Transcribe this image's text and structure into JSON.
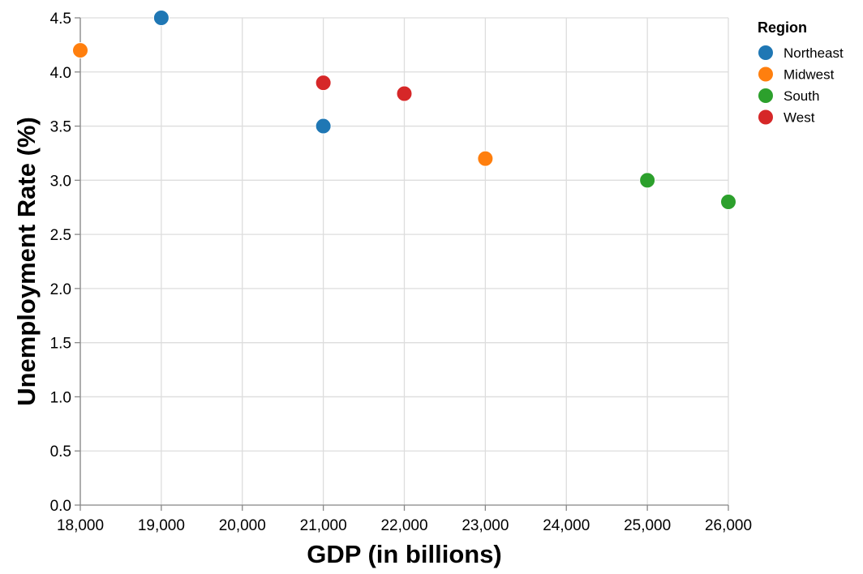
{
  "chart_data": {
    "type": "scatter",
    "xlabel": "GDP (in billions)",
    "ylabel": "Unemployment Rate (%)",
    "xlim": [
      18000,
      26000
    ],
    "ylim": [
      0,
      4.5
    ],
    "x_ticks": [
      18000,
      19000,
      20000,
      21000,
      22000,
      23000,
      24000,
      25000,
      26000
    ],
    "x_tick_labels": [
      "18,000",
      "19,000",
      "20,000",
      "21,000",
      "22,000",
      "23,000",
      "24,000",
      "25,000",
      "26,000"
    ],
    "y_ticks": [
      0,
      0.5,
      1,
      1.5,
      2,
      2.5,
      3,
      3.5,
      4,
      4.5
    ],
    "y_tick_labels": [
      "0.0",
      "0.5",
      "1.0",
      "1.5",
      "2.0",
      "2.5",
      "3.0",
      "3.5",
      "4.0",
      "4.5"
    ],
    "grid": true,
    "legend": {
      "title": "Region",
      "position": "top-right",
      "entries": [
        {
          "name": "Northeast",
          "color": "#1f77b4"
        },
        {
          "name": "Midwest",
          "color": "#ff7f0e"
        },
        {
          "name": "South",
          "color": "#2ca02c"
        },
        {
          "name": "West",
          "color": "#d62728"
        }
      ]
    },
    "series": [
      {
        "name": "Northeast",
        "color": "#1f77b4",
        "points": [
          {
            "x": 19000,
            "y": 4.5
          },
          {
            "x": 21000,
            "y": 3.5
          }
        ]
      },
      {
        "name": "Midwest",
        "color": "#ff7f0e",
        "points": [
          {
            "x": 18000,
            "y": 4.2
          },
          {
            "x": 23000,
            "y": 3.2
          }
        ]
      },
      {
        "name": "South",
        "color": "#2ca02c",
        "points": [
          {
            "x": 25000,
            "y": 3.0
          },
          {
            "x": 26000,
            "y": 2.8
          }
        ]
      },
      {
        "name": "West",
        "color": "#d62728",
        "points": [
          {
            "x": 21000,
            "y": 3.9
          },
          {
            "x": 22000,
            "y": 3.8
          }
        ]
      }
    ]
  }
}
